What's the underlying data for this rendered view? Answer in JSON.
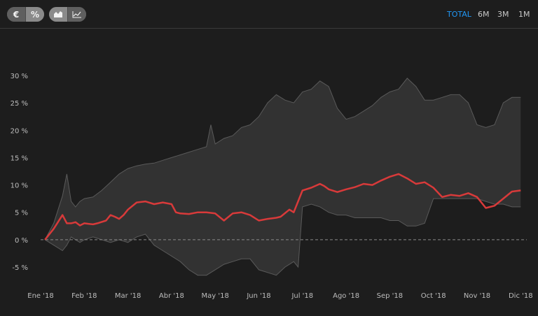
{
  "toolbar": {
    "unit_toggle": [
      {
        "label": "€",
        "active": false
      },
      {
        "label": "%",
        "active": true
      }
    ],
    "view_toggle": [
      {
        "icon": "area-chart-icon",
        "active": true
      },
      {
        "icon": "line-chart-icon",
        "active": false
      }
    ],
    "ranges": [
      {
        "label": "TOTAL",
        "active": true
      },
      {
        "label": "6M",
        "active": false
      },
      {
        "label": "3M",
        "active": false
      },
      {
        "label": "1M",
        "active": false
      }
    ]
  },
  "colors": {
    "line": "#d83a3a",
    "band": "#3a3a3a",
    "band_edge": "#5a5a5a",
    "active_range": "#2196f3",
    "zero_line": "#8a8a8a"
  },
  "chart_data": {
    "type": "line",
    "grid": false,
    "ylim": [
      -8,
      32
    ],
    "y_ticks": [
      -5,
      0,
      5,
      10,
      15,
      20,
      25,
      30
    ],
    "y_tick_labels": [
      "-5 %",
      "0 %",
      "5 %",
      "10 %",
      "15 %",
      "20 %",
      "25 %",
      "30 %"
    ],
    "x_tick_labels": [
      "Ene '18",
      "Feb '18",
      "Mar '18",
      "Abr '18",
      "May '18",
      "Jun '18",
      "Jul '18",
      "Ago '18",
      "Sep '18",
      "Oct '18",
      "Nov '18",
      "Dic '18"
    ],
    "x_tick_dates": [
      0,
      1,
      2,
      3,
      4,
      5,
      6,
      7,
      8,
      9,
      10,
      11
    ],
    "zero_line": true,
    "series": [
      {
        "role": "main",
        "x": [
          0.1,
          0.3,
          0.5,
          0.6,
          0.7,
          0.8,
          0.9,
          1.0,
          1.2,
          1.3,
          1.5,
          1.6,
          1.7,
          1.8,
          1.9,
          2.0,
          2.2,
          2.4,
          2.6,
          2.8,
          3.0,
          3.1,
          3.2,
          3.4,
          3.6,
          3.8,
          4.0,
          4.2,
          4.4,
          4.6,
          4.8,
          5.0,
          5.2,
          5.4,
          5.5,
          5.7,
          5.8,
          6.0,
          6.2,
          6.4,
          6.5,
          6.6,
          6.8,
          7.0,
          7.2,
          7.4,
          7.6,
          7.8,
          8.0,
          8.2,
          8.4,
          8.6,
          8.8,
          9.0,
          9.2,
          9.4,
          9.6,
          9.8,
          10.0,
          10.2,
          10.4,
          10.6,
          10.8,
          11.0
        ],
        "y": [
          0,
          2,
          4.5,
          3,
          3,
          3.2,
          2.6,
          3,
          2.8,
          3,
          3.5,
          4.5,
          4.2,
          3.8,
          4.5,
          5.5,
          6.8,
          7,
          6.5,
          6.8,
          6.5,
          5,
          4.8,
          4.7,
          5,
          5,
          4.8,
          3.5,
          4.8,
          5,
          4.5,
          3.5,
          3.8,
          4,
          4.2,
          5.5,
          5,
          9,
          9.5,
          10.2,
          9.8,
          9.2,
          8.7,
          9.2,
          9.6,
          10.2,
          10,
          10.8,
          11.5,
          12,
          11.2,
          10.2,
          10.5,
          9.5,
          7.8,
          8.2,
          8,
          8.5,
          7.8,
          5.8,
          6.2,
          7.5,
          8.8,
          9
        ]
      },
      {
        "role": "band_upper",
        "x": [
          0.1,
          0.3,
          0.5,
          0.6,
          0.7,
          0.8,
          0.9,
          1.0,
          1.2,
          1.4,
          1.6,
          1.8,
          2.0,
          2.2,
          2.4,
          2.6,
          2.8,
          3.0,
          3.2,
          3.4,
          3.6,
          3.8,
          3.9,
          4.0,
          4.2,
          4.4,
          4.6,
          4.8,
          5.0,
          5.2,
          5.4,
          5.6,
          5.8,
          6.0,
          6.2,
          6.4,
          6.6,
          6.8,
          7.0,
          7.2,
          7.4,
          7.6,
          7.8,
          8.0,
          8.2,
          8.4,
          8.6,
          8.8,
          9.0,
          9.2,
          9.4,
          9.6,
          9.8,
          10.0,
          10.2,
          10.4,
          10.6,
          10.8,
          11.0
        ],
        "y": [
          0,
          3,
          8,
          12,
          7,
          6,
          7,
          7.5,
          7.8,
          9,
          10.5,
          12,
          13,
          13.5,
          13.8,
          14,
          14.5,
          15,
          15.5,
          16,
          16.5,
          17,
          21,
          17.5,
          18.5,
          19,
          20.5,
          21,
          22.5,
          25,
          26.5,
          25.5,
          25,
          27,
          27.5,
          29,
          28,
          24,
          22,
          22.5,
          23.5,
          24.5,
          26,
          27,
          27.5,
          29.5,
          28,
          25.5,
          25.5,
          26,
          26.5,
          26.5,
          25,
          21,
          20.5,
          21,
          25,
          26,
          26
        ]
      },
      {
        "role": "band_lower",
        "x": [
          0.1,
          0.3,
          0.5,
          0.6,
          0.7,
          0.8,
          0.9,
          1.0,
          1.2,
          1.4,
          1.6,
          1.8,
          2.0,
          2.2,
          2.4,
          2.6,
          2.8,
          3.0,
          3.2,
          3.4,
          3.6,
          3.8,
          4.0,
          4.2,
          4.4,
          4.6,
          4.8,
          5.0,
          5.2,
          5.4,
          5.6,
          5.8,
          5.9,
          6.0,
          6.2,
          6.4,
          6.6,
          6.8,
          7.0,
          7.2,
          7.4,
          7.6,
          7.8,
          8.0,
          8.2,
          8.4,
          8.6,
          8.8,
          9.0,
          9.2,
          9.4,
          9.6,
          9.8,
          10.0,
          10.2,
          10.4,
          10.6,
          10.8,
          11.0
        ],
        "y": [
          0,
          -1,
          -2,
          -1,
          0.5,
          0,
          -0.5,
          0,
          0.5,
          0,
          -0.5,
          0,
          -0.5,
          0.5,
          1,
          -1,
          -2,
          -3,
          -4,
          -5.5,
          -6.5,
          -6.5,
          -5.5,
          -4.5,
          -4,
          -3.5,
          -3.5,
          -5.5,
          -6,
          -6.5,
          -5,
          -4,
          -5,
          6,
          6.5,
          6,
          5,
          4.5,
          4.5,
          4,
          4,
          4,
          4,
          3.5,
          3.5,
          2.5,
          2.5,
          3,
          7.5,
          7.5,
          7.5,
          7.5,
          7.5,
          7.5,
          7,
          6.5,
          6.5,
          6,
          6
        ]
      }
    ]
  }
}
